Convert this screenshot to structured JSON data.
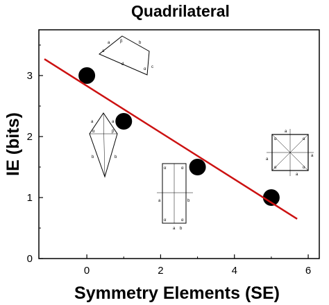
{
  "chart_data": {
    "type": "scatter",
    "title": "Quadrilateral",
    "xlabel": "Symmetry Elements (SE)",
    "ylabel": "IE (bits)",
    "xlim": [
      -1.3,
      6.3
    ],
    "ylim": [
      0,
      3.75
    ],
    "xticks": [
      0,
      2,
      4,
      6
    ],
    "yticks": [
      0,
      1,
      2,
      3
    ],
    "points": [
      {
        "x": 0,
        "y": 3.0
      },
      {
        "x": 1,
        "y": 2.25
      },
      {
        "x": 3,
        "y": 1.5
      },
      {
        "x": 5,
        "y": 1.0
      }
    ],
    "trend_line": {
      "x": [
        -1.15,
        5.7
      ],
      "y": [
        3.27,
        0.65
      ]
    },
    "grid": false,
    "colors": {
      "points": "#000000",
      "trend_line": "#cc1111",
      "axes": "#000000"
    },
    "inset_figures": [
      {
        "shape": "quadrilateral",
        "letters": [
          "a",
          "β",
          "b",
          "c",
          "α",
          "d",
          "a"
        ]
      },
      {
        "shape": "kite",
        "letters": [
          "a",
          "a",
          "α",
          "β",
          "b",
          "b"
        ]
      },
      {
        "shape": "rectangle",
        "letters": [
          "α",
          "α",
          "a",
          "b",
          "α",
          "α",
          "a",
          "b"
        ]
      },
      {
        "shape": "square",
        "letters": [
          "a",
          "α",
          "α",
          "a",
          "a",
          "α",
          "α",
          "a"
        ]
      }
    ]
  }
}
